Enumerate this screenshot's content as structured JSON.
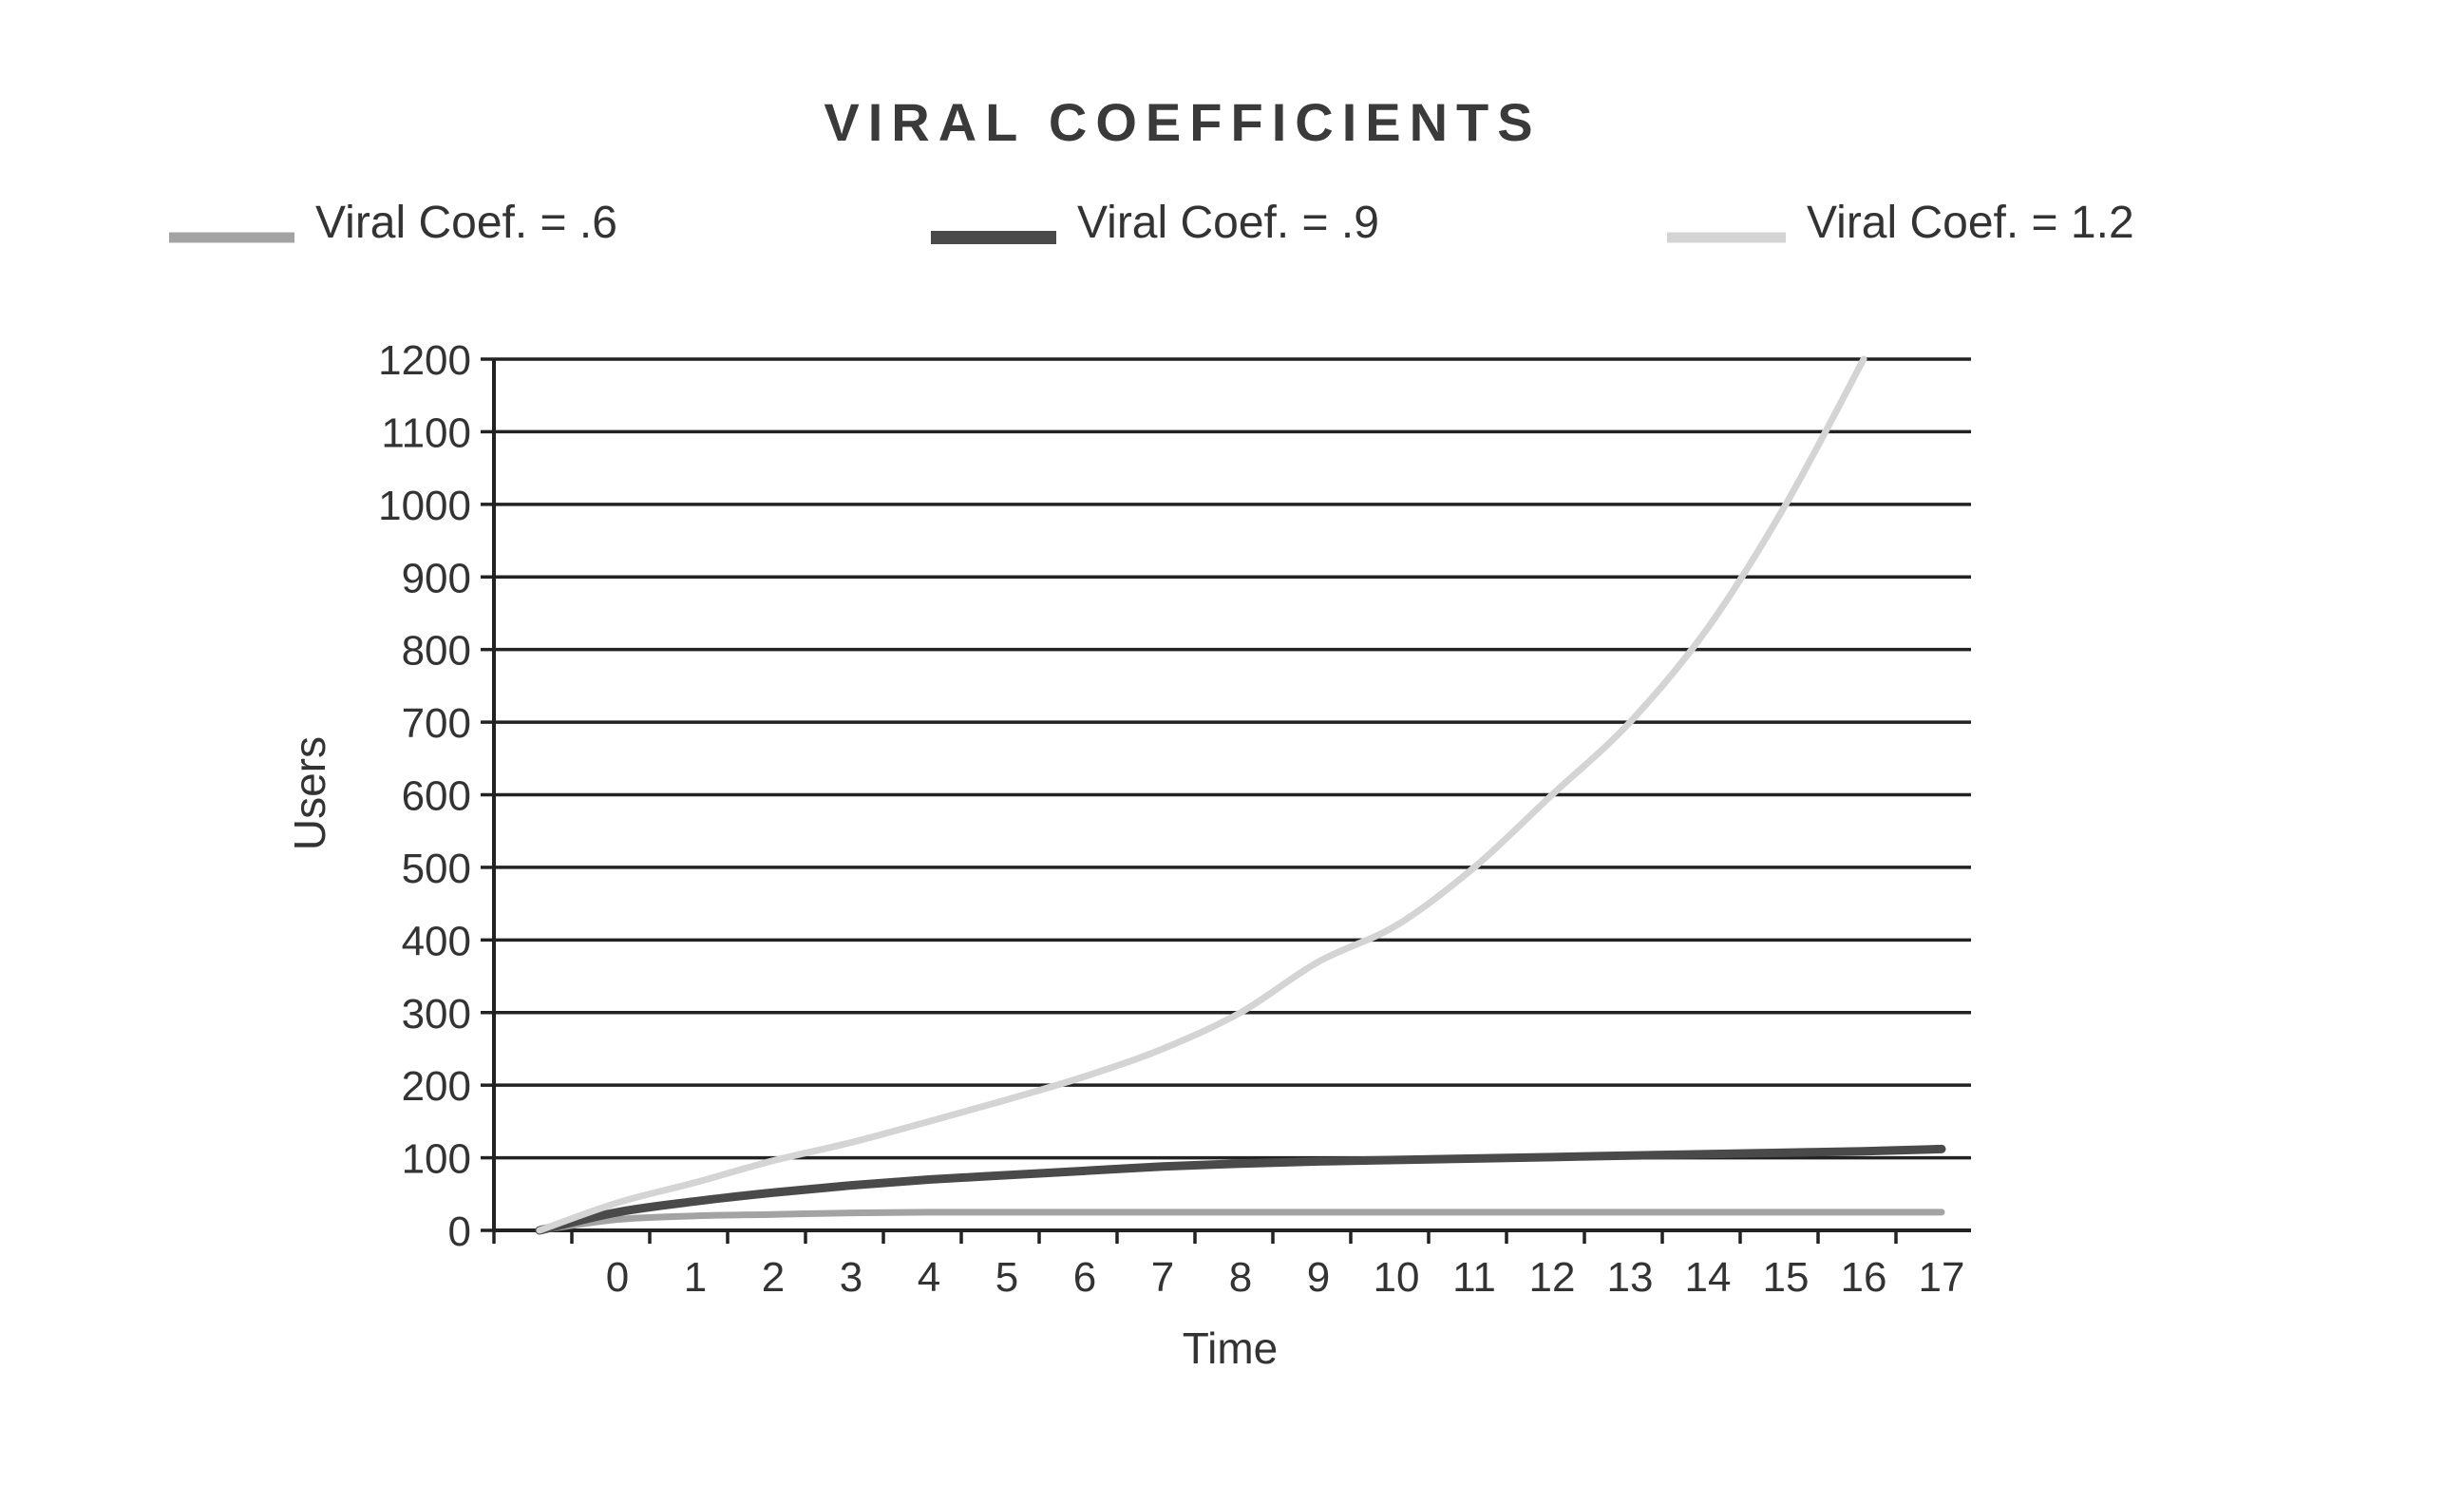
{
  "chart_data": {
    "type": "line",
    "title": "VIRAL COEFFICIENTS",
    "xlabel": "Time",
    "ylabel": "Users",
    "x_ticks": [
      "0",
      "1",
      "2",
      "3",
      "4",
      "5",
      "6",
      "7",
      "8",
      "9",
      "10",
      "11",
      "12",
      "13",
      "14",
      "15",
      "16",
      "17"
    ],
    "y_ticks": [
      "0",
      "100",
      "200",
      "300",
      "400",
      "500",
      "600",
      "700",
      "800",
      "900",
      "1000",
      "1100",
      "1200"
    ],
    "xlim": [
      -1,
      17
    ],
    "ylim": [
      0,
      1200
    ],
    "grid": true,
    "legend_position": "top",
    "x": [
      -1,
      0,
      1,
      2,
      3,
      4,
      5,
      6,
      7,
      8,
      9,
      10,
      11,
      12,
      13,
      14,
      15,
      16,
      17
    ],
    "series": [
      {
        "name": "Viral Coef. = .6",
        "color": "#a3a3a3",
        "values": [
          0,
          15,
          20,
          22,
          24,
          25,
          25,
          25,
          25,
          25,
          25,
          25,
          25,
          25,
          25,
          25,
          25,
          25,
          25
        ]
      },
      {
        "name": "Viral Coef. = .9",
        "color": "#4a4a4a",
        "values": [
          0,
          25,
          40,
          52,
          62,
          70,
          76,
          82,
          88,
          92,
          95,
          97,
          99,
          101,
          103,
          105,
          107,
          109,
          112
        ]
      },
      {
        "name": "Viral Coef. = 1.2",
        "color": "#d4d4d4",
        "values": [
          0,
          38,
          66,
          96,
          121,
          150,
          180,
          212,
          250,
          300,
          370,
          420,
          500,
          600,
          700,
          830,
          1000,
          1200,
          null
        ]
      }
    ]
  }
}
